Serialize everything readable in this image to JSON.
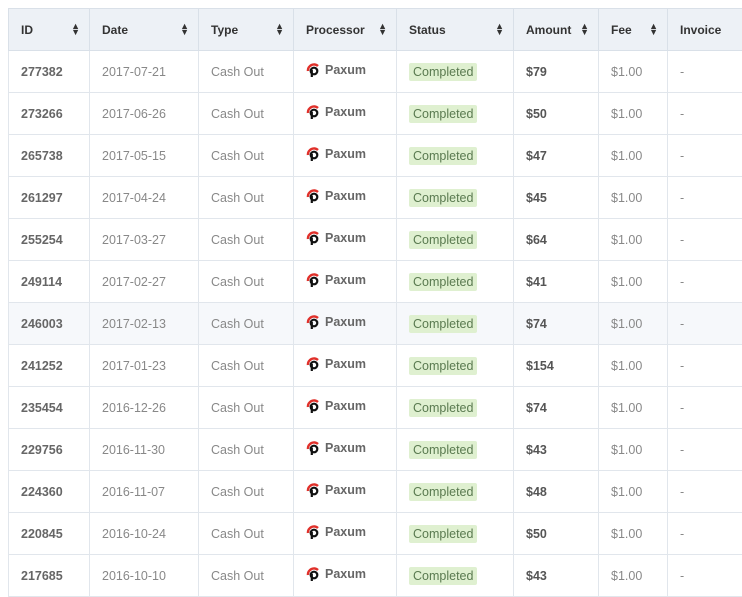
{
  "columns": [
    "ID",
    "Date",
    "Type",
    "Processor",
    "Status",
    "Amount",
    "Fee",
    "Invoice"
  ],
  "rows": [
    {
      "id": "277382",
      "date": "2017-07-21",
      "type": "Cash Out",
      "processor": "Paxum",
      "status": "Completed",
      "amount": "$79",
      "fee": "$1.00",
      "invoice": "-"
    },
    {
      "id": "273266",
      "date": "2017-06-26",
      "type": "Cash Out",
      "processor": "Paxum",
      "status": "Completed",
      "amount": "$50",
      "fee": "$1.00",
      "invoice": "-"
    },
    {
      "id": "265738",
      "date": "2017-05-15",
      "type": "Cash Out",
      "processor": "Paxum",
      "status": "Completed",
      "amount": "$47",
      "fee": "$1.00",
      "invoice": "-"
    },
    {
      "id": "261297",
      "date": "2017-04-24",
      "type": "Cash Out",
      "processor": "Paxum",
      "status": "Completed",
      "amount": "$45",
      "fee": "$1.00",
      "invoice": "-"
    },
    {
      "id": "255254",
      "date": "2017-03-27",
      "type": "Cash Out",
      "processor": "Paxum",
      "status": "Completed",
      "amount": "$64",
      "fee": "$1.00",
      "invoice": "-"
    },
    {
      "id": "249114",
      "date": "2017-02-27",
      "type": "Cash Out",
      "processor": "Paxum",
      "status": "Completed",
      "amount": "$41",
      "fee": "$1.00",
      "invoice": "-"
    },
    {
      "id": "246003",
      "date": "2017-02-13",
      "type": "Cash Out",
      "processor": "Paxum",
      "status": "Completed",
      "amount": "$74",
      "fee": "$1.00",
      "invoice": "-"
    },
    {
      "id": "241252",
      "date": "2017-01-23",
      "type": "Cash Out",
      "processor": "Paxum",
      "status": "Completed",
      "amount": "$154",
      "fee": "$1.00",
      "invoice": "-"
    },
    {
      "id": "235454",
      "date": "2016-12-26",
      "type": "Cash Out",
      "processor": "Paxum",
      "status": "Completed",
      "amount": "$74",
      "fee": "$1.00",
      "invoice": "-"
    },
    {
      "id": "229756",
      "date": "2016-11-30",
      "type": "Cash Out",
      "processor": "Paxum",
      "status": "Completed",
      "amount": "$43",
      "fee": "$1.00",
      "invoice": "-"
    },
    {
      "id": "224360",
      "date": "2016-11-07",
      "type": "Cash Out",
      "processor": "Paxum",
      "status": "Completed",
      "amount": "$48",
      "fee": "$1.00",
      "invoice": "-"
    },
    {
      "id": "220845",
      "date": "2016-10-24",
      "type": "Cash Out",
      "processor": "Paxum",
      "status": "Completed",
      "amount": "$50",
      "fee": "$1.00",
      "invoice": "-"
    },
    {
      "id": "217685",
      "date": "2016-10-10",
      "type": "Cash Out",
      "processor": "Paxum",
      "status": "Completed",
      "amount": "$43",
      "fee": "$1.00",
      "invoice": "-"
    }
  ],
  "highlighted_row": "246003",
  "colors": {
    "header_bg": "#edf1f6",
    "badge_bg": "#dff0d0",
    "logo_red": "#e0302a"
  }
}
